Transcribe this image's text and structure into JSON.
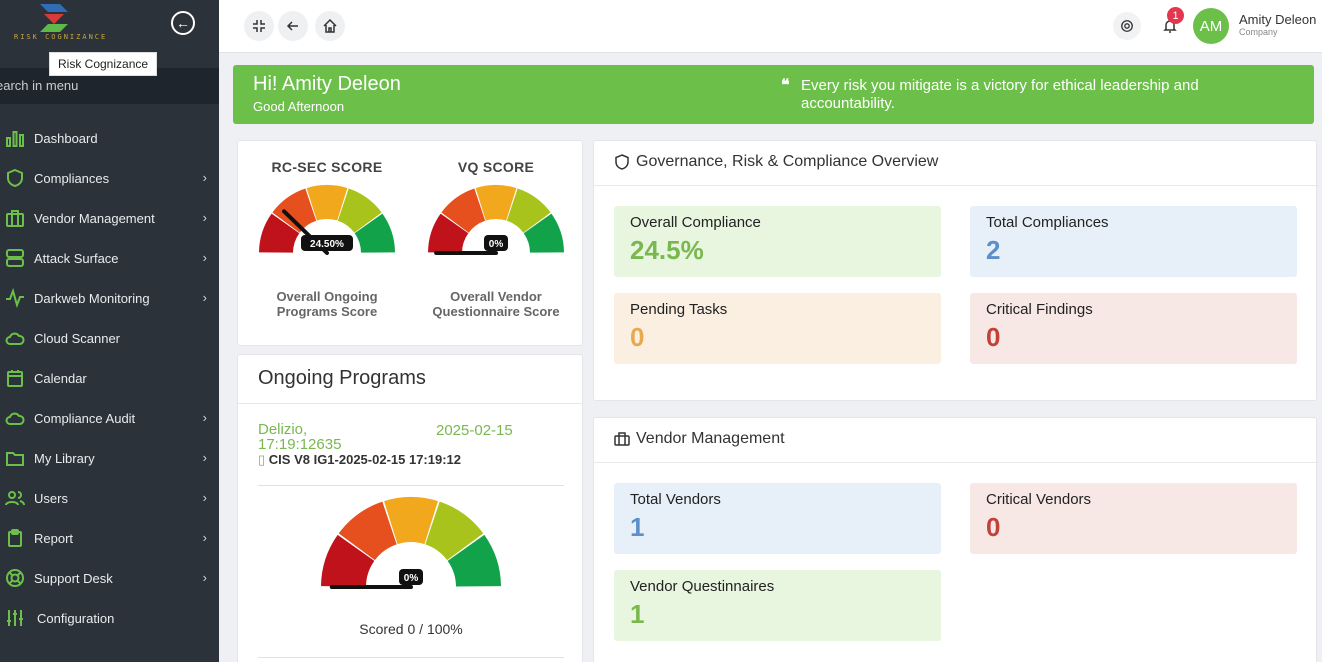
{
  "brand": {
    "name": "RISK COGNIZANCE",
    "tooltip": "Risk Cognizance"
  },
  "sidebar": {
    "search_text": "earch in menu",
    "items": [
      {
        "label": "Dashboard",
        "icon": "bar-chart-icon",
        "chevron": false
      },
      {
        "label": "Compliances",
        "icon": "shield-icon",
        "chevron": true
      },
      {
        "label": "Vendor Management",
        "icon": "briefcase-icon",
        "chevron": true
      },
      {
        "label": "Attack Surface",
        "icon": "server-icon",
        "chevron": true
      },
      {
        "label": "Darkweb Monitoring",
        "icon": "activity-icon",
        "chevron": true
      },
      {
        "label": "Cloud Scanner",
        "icon": "cloud-icon",
        "chevron": false
      },
      {
        "label": "Calendar",
        "icon": "calendar-icon",
        "chevron": false
      },
      {
        "label": "Compliance Audit",
        "icon": "cloud-icon",
        "chevron": true
      },
      {
        "label": "My Library",
        "icon": "folder-icon",
        "chevron": true
      },
      {
        "label": "Users",
        "icon": "users-icon",
        "chevron": true
      },
      {
        "label": "Report",
        "icon": "clipboard-icon",
        "chevron": true
      },
      {
        "label": "Support Desk",
        "icon": "lifebuoy-icon",
        "chevron": true
      },
      {
        "label": "Configuration",
        "icon": "sliders-icon",
        "chevron": false
      }
    ]
  },
  "topbar": {
    "notification_count": "1",
    "avatar_initials": "AM",
    "user_name": "Amity Deleon",
    "user_role": "Company"
  },
  "greeting": {
    "title": "Hi! Amity Deleon",
    "subtitle": "Good Afternoon",
    "quote": "Every risk you mitigate is a victory for ethical leadership and accountability."
  },
  "scores": {
    "rc_sec": {
      "title": "RC-SEC SCORE",
      "value": "24.50%",
      "fraction": 0.245,
      "caption_line1": "Overall Ongoing",
      "caption_line2": "Programs Score"
    },
    "vq": {
      "title": "VQ SCORE",
      "value": "0%",
      "fraction": 0,
      "caption_line1": "Overall Vendor",
      "caption_line2": "Questionnaire Score"
    }
  },
  "programs": {
    "title": "Ongoing Programs",
    "item": {
      "name": "Delizio, 17:19:12635",
      "date": "2025-02-15",
      "framework": "CIS V8 IG1-2025-02-15 17:19:12",
      "gauge_value": "0%",
      "gauge_fraction": 0,
      "score_text": "Scored 0 / 100%"
    }
  },
  "grc": {
    "title": "Governance, Risk & Compliance Overview",
    "stats": [
      {
        "label": "Overall Compliance",
        "value": "24.5%"
      },
      {
        "label": "Total Compliances",
        "value": "2"
      },
      {
        "label": "Pending Tasks",
        "value": "0"
      },
      {
        "label": "Critical Findings",
        "value": "0"
      }
    ]
  },
  "vendor": {
    "title": "Vendor Management",
    "stats": [
      {
        "label": "Total Vendors",
        "value": "1"
      },
      {
        "label": "Critical Vendors",
        "value": "0"
      },
      {
        "label": "Vendor Questinnaires",
        "value": "1"
      }
    ]
  },
  "colors": {
    "accent_green": "#6cc04a",
    "sidebar_bg": "#2b323a",
    "gauge_segments": [
      "#c0121b",
      "#e6501e",
      "#f2a81d",
      "#a8c41c",
      "#12a24a"
    ]
  }
}
